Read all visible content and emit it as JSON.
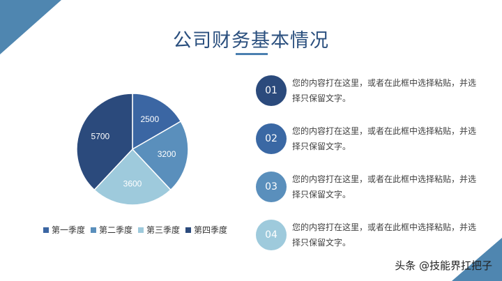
{
  "title": "公司财务基本情况",
  "colors": {
    "accent": "#4f86b0",
    "title": "#2a4f7e",
    "q1": "#3b66a3",
    "q2": "#5a8fbc",
    "q3": "#9ecadc",
    "q4": "#2b4a7c"
  },
  "chart_data": {
    "type": "pie",
    "categories": [
      "第一季度",
      "第二季度",
      "第三季度",
      "第四季度"
    ],
    "values": [
      2500,
      3200,
      3600,
      5700
    ],
    "legend": "bottom"
  },
  "items": [
    {
      "number": "01",
      "text": "您的内容打在这里，或者在此框中选择粘贴，并选择只保留文字。",
      "color": "#2b4a7c"
    },
    {
      "number": "02",
      "text": "您的内容打在这里，或者在此框中选择粘贴，并选择只保留文字。",
      "color": "#3a68a4"
    },
    {
      "number": "03",
      "text": "您的内容打在这里，或者在此框中选择粘贴，并选择只保留文字。",
      "color": "#5a8fbc"
    },
    {
      "number": "04",
      "text": "您的内容打在这里，或者在此框中选择粘贴，并选择只保留文字。",
      "color": "#9ecadc"
    }
  ],
  "watermark": "头条 @技能界扛把子"
}
